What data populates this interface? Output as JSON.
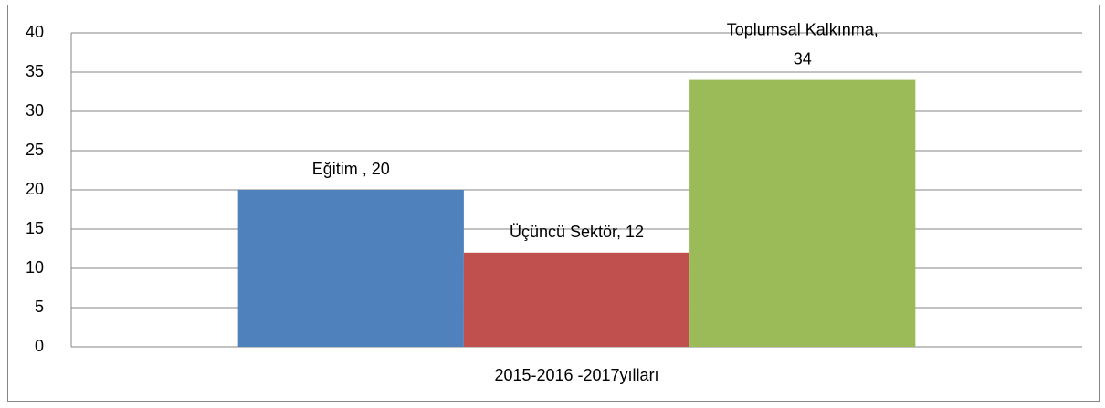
{
  "chart_data": {
    "type": "bar",
    "categories": [
      "2015-2016 -2017yılları"
    ],
    "series": [
      {
        "color": "#4f81bd",
        "values": [
          20
        ],
        "value_labels": [
          "Eğitim , 20"
        ]
      },
      {
        "color": "#c0504d",
        "values": [
          12
        ],
        "value_labels": [
          "Üçüncü Sektör, 12"
        ]
      },
      {
        "color": "#9bbb59",
        "values": [
          34
        ],
        "value_labels": [
          "Toplumsal Kalkınma,\n34"
        ]
      }
    ],
    "ylim": [
      0,
      40
    ],
    "yticks": [
      0,
      5,
      10,
      15,
      20,
      25,
      30,
      35,
      40
    ],
    "grid": true
  }
}
